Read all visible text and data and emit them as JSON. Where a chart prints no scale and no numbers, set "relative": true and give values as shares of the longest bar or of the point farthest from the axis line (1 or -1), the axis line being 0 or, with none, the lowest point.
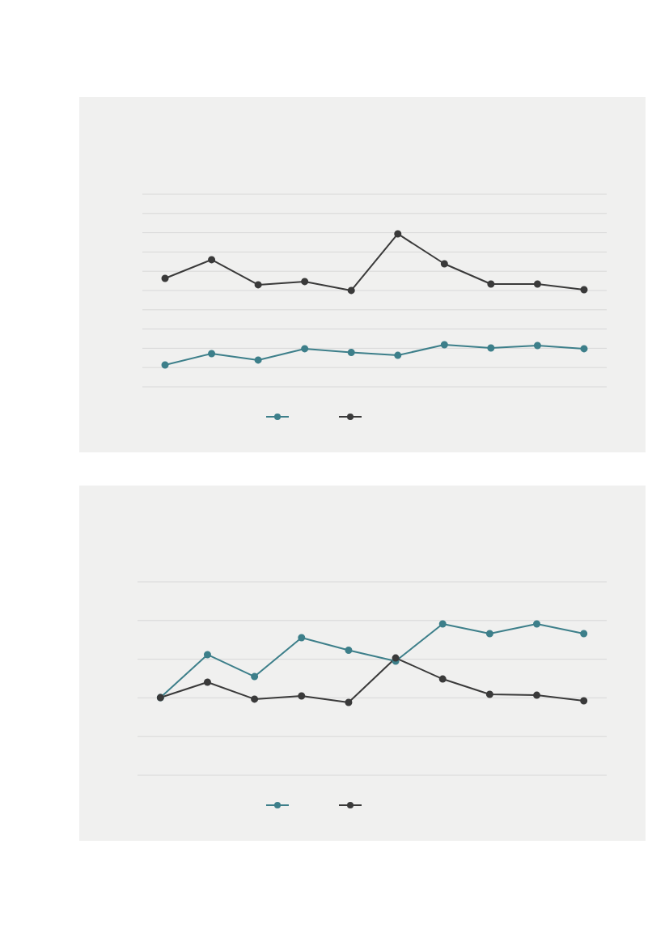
{
  "chart_data": [
    {
      "type": "line",
      "relative": true,
      "categories": [
        null,
        null,
        null,
        null,
        null,
        null,
        null,
        null,
        null,
        null
      ],
      "grid": "y",
      "marker": "circle",
      "line_style": "solid",
      "series": [
        {
          "color": "#3d7f8a",
          "values": [
            0.143,
            0.217,
            0.175,
            0.249,
            0.225,
            0.206,
            0.275,
            0.254,
            0.27,
            0.249
          ]
        },
        {
          "color": "#3a3a3a",
          "values": [
            0.709,
            0.831,
            0.667,
            0.688,
            0.63,
            1,
            0.804,
            0.672,
            0.672,
            0.635
          ]
        }
      ]
    },
    {
      "type": "line",
      "relative": true,
      "categories": [
        null,
        null,
        null,
        null,
        null,
        null,
        null,
        null,
        null,
        null
      ],
      "grid": "y",
      "marker": "circle",
      "line_style": "solid",
      "series": [
        {
          "color": "#3d7f8a",
          "values": [
            0.513,
            0.797,
            0.652,
            0.909,
            0.826,
            0.754,
            1,
            0.936,
            1,
            0.936
          ]
        },
        {
          "color": "#3a3a3a",
          "values": [
            0.513,
            0.615,
            0.503,
            0.524,
            0.481,
            0.775,
            0.636,
            0.535,
            0.529,
            0.492
          ]
        }
      ]
    }
  ]
}
